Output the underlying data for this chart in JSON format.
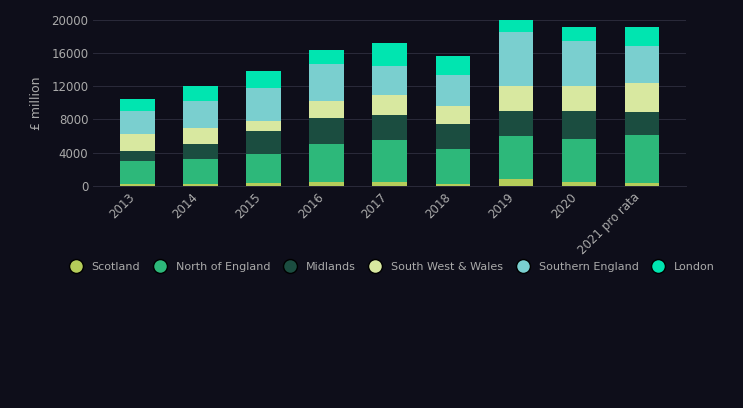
{
  "years": [
    "2013",
    "2014",
    "2015",
    "2016",
    "2017",
    "2018",
    "2019",
    "2020",
    "2021 pro rata"
  ],
  "series": {
    "Scotland": [
      200,
      200,
      300,
      500,
      500,
      200,
      800,
      500,
      300
    ],
    "North of England": [
      2800,
      3000,
      3500,
      4500,
      5000,
      4200,
      5200,
      5200,
      5800
    ],
    "Midlands": [
      1200,
      1800,
      2800,
      3200,
      3000,
      3000,
      3000,
      3300,
      2800
    ],
    "South West & Wales": [
      2000,
      2000,
      1200,
      2000,
      2500,
      2200,
      3000,
      3000,
      3500
    ],
    "Southern England": [
      2800,
      3200,
      4000,
      4500,
      3500,
      3800,
      6500,
      5500,
      4500
    ],
    "London": [
      1500,
      1800,
      2000,
      1700,
      2700,
      2200,
      1500,
      1700,
      2200
    ]
  },
  "colors": {
    "Scotland": "#b5cc5a",
    "North of England": "#2db87a",
    "Midlands": "#1b4d40",
    "South West & Wales": "#d8e8a0",
    "Southern England": "#7acfcf",
    "London": "#00e5b0"
  },
  "ylabel": "£ million",
  "ylim": [
    0,
    20000
  ],
  "yticks": [
    0,
    4000,
    8000,
    12000,
    16000,
    20000
  ],
  "background_color": "#0e0e1a",
  "bar_width": 0.55,
  "grid_color": "#2a2a3a",
  "text_color": "#aaaaaa",
  "legend_marker_size": 10
}
